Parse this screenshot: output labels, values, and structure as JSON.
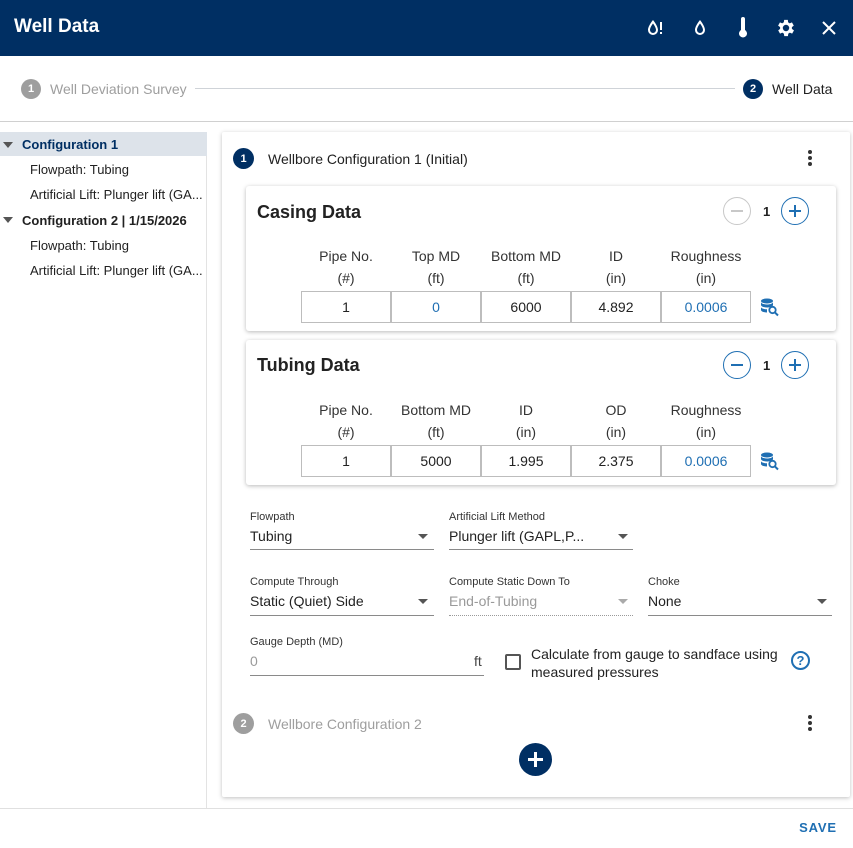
{
  "header": {
    "title": "Well Data",
    "icons": [
      "water-alert-icon",
      "water-drop-icon",
      "thermometer-icon",
      "gear-icon",
      "close-icon"
    ],
    "background": "#002f63"
  },
  "stepper": {
    "steps": [
      {
        "number": "1",
        "label": "Well Deviation Survey",
        "state": "inactive"
      },
      {
        "number": "2",
        "label": "Well Data",
        "state": "active"
      }
    ]
  },
  "tree": {
    "items": [
      {
        "label": "Configuration 1",
        "level": 0,
        "selected": true
      },
      {
        "label": "Flowpath: Tubing",
        "level": 1
      },
      {
        "label": "Artificial Lift: Plunger lift (GA...",
        "level": 1
      },
      {
        "label": "Configuration 2 | 1/15/2026",
        "level": 0
      },
      {
        "label": "Flowpath: Tubing",
        "level": 1
      },
      {
        "label": "Artificial Lift: Plunger lift (GA...",
        "level": 1
      }
    ]
  },
  "config1": {
    "number": "1",
    "title": "Wellbore Configuration 1 (Initial)",
    "casing": {
      "title": "Casing Data",
      "count": "1",
      "columns": [
        {
          "name": "Pipe No.",
          "unit": "(#)"
        },
        {
          "name": "Top MD",
          "unit": "(ft)"
        },
        {
          "name": "Bottom MD",
          "unit": "(ft)"
        },
        {
          "name": "ID",
          "unit": "(in)"
        },
        {
          "name": "Roughness",
          "unit": "(in)"
        }
      ],
      "row": [
        "1",
        "0",
        "6000",
        "4.892",
        "0.0006"
      ]
    },
    "tubing": {
      "title": "Tubing Data",
      "count": "1",
      "columns": [
        {
          "name": "Pipe No.",
          "unit": "(#)"
        },
        {
          "name": "Bottom MD",
          "unit": "(ft)"
        },
        {
          "name": "ID",
          "unit": "(in)"
        },
        {
          "name": "OD",
          "unit": "(in)"
        },
        {
          "name": "Roughness",
          "unit": "(in)"
        }
      ],
      "row": [
        "1",
        "5000",
        "1.995",
        "2.375",
        "0.0006"
      ]
    },
    "form": {
      "flowpath": {
        "label": "Flowpath",
        "value": "Tubing"
      },
      "lift_method": {
        "label": "Artificial Lift Method",
        "value": "Plunger lift (GAPL,P..."
      },
      "compute_through": {
        "label": "Compute Through",
        "value": "Static (Quiet) Side"
      },
      "compute_static": {
        "label": "Compute Static Down To",
        "value": "End-of-Tubing"
      },
      "choke": {
        "label": "Choke",
        "value": "None"
      },
      "gauge_depth": {
        "label": "Gauge Depth (MD)",
        "placeholder": "0",
        "unit": "ft"
      },
      "calc_checkbox": {
        "label": "Calculate from gauge to sandface using measured pressures",
        "checked": false
      },
      "help_glyph": "?"
    }
  },
  "config2": {
    "number": "2",
    "title": "Wellbore Configuration 2"
  },
  "footer": {
    "save_label": "SAVE"
  },
  "colors": {
    "navy": "#002f63",
    "accent_blue": "#1f6fb3",
    "disabled_gray": "#9e9e9e"
  }
}
